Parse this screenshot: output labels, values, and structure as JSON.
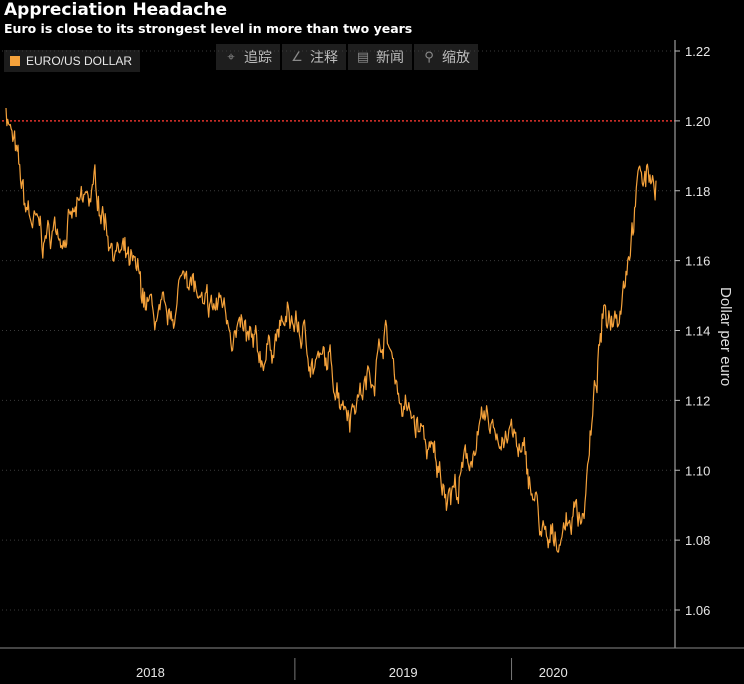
{
  "header": {
    "title": "Appreciation Headache",
    "subtitle": "Euro is close to its strongest level in more than two years"
  },
  "toolbar": {
    "items": [
      {
        "label": "追踪",
        "icon": "crosshair-icon"
      },
      {
        "label": "注释",
        "icon": "pencil-icon"
      },
      {
        "label": "新闻",
        "icon": "news-icon"
      },
      {
        "label": "缩放",
        "icon": "zoom-icon"
      }
    ]
  },
  "chart_data": {
    "type": "line",
    "title": "Appreciation Headache",
    "subtitle": "Euro is close to its strongest level in more than two years",
    "ylabel": "Dollar per euro",
    "ylim": [
      1.05,
      1.225
    ],
    "yticks": [
      "1.22",
      "1.20",
      "1.18",
      "1.16",
      "1.14",
      "1.12",
      "1.10",
      "1.08",
      "1.06"
    ],
    "xticks": [
      "2018",
      "2019",
      "2020"
    ],
    "reference_line": {
      "value": 1.2,
      "color": "#e0322b",
      "style": "dotted"
    },
    "grid": true,
    "legend": "top-left",
    "series": [
      {
        "name": "EURO/US DOLLAR",
        "color": "#f5a23b",
        "x": [
          "2017-09",
          "2017-10",
          "2017-11",
          "2017-12",
          "2018-01",
          "2018-02",
          "2018-03",
          "2018-04",
          "2018-05",
          "2018-06",
          "2018-07",
          "2018-08",
          "2018-09",
          "2018-10",
          "2018-11",
          "2018-12",
          "2019-01",
          "2019-02",
          "2019-03",
          "2019-04",
          "2019-05",
          "2019-06",
          "2019-07",
          "2019-08",
          "2019-09",
          "2019-10",
          "2019-11",
          "2019-12",
          "2020-01",
          "2020-02",
          "2020-03",
          "2020-04",
          "2020-05",
          "2020-06",
          "2020-07",
          "2020-08",
          "2020-09"
        ],
        "values": [
          1.205,
          1.175,
          1.165,
          1.17,
          1.172,
          1.18,
          1.165,
          1.155,
          1.145,
          1.138,
          1.16,
          1.142,
          1.148,
          1.138,
          1.13,
          1.14,
          1.142,
          1.132,
          1.128,
          1.12,
          1.125,
          1.14,
          1.118,
          1.11,
          1.098,
          1.095,
          1.108,
          1.112,
          1.11,
          1.097,
          1.075,
          1.086,
          1.09,
          1.14,
          1.15,
          1.183,
          1.185
        ]
      }
    ]
  }
}
